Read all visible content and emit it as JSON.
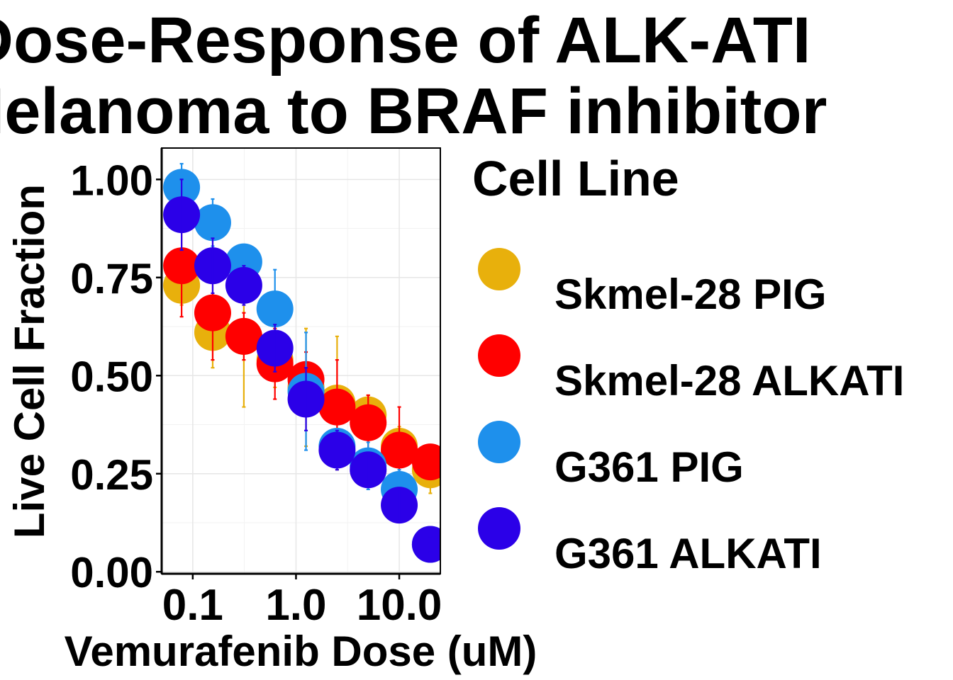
{
  "chart_data": {
    "type": "scatter",
    "title_lines": [
      "Dose-Response of ALK-ATI",
      "Melanoma to BRAF inhibitor"
    ],
    "xlabel": "Vemurafenib Dose (uM)",
    "ylabel": "Live Cell Fraction",
    "x_scale": "log10",
    "xlim": [
      0.05,
      25
    ],
    "ylim": [
      -0.005,
      1.08
    ],
    "x_ticks": [
      0.1,
      1.0,
      10.0
    ],
    "x_tick_labels": [
      "0.1",
      "1.0",
      "10.0"
    ],
    "y_ticks": [
      0,
      0.25,
      0.5,
      0.75,
      1.0
    ],
    "y_tick_labels": [
      "0.00",
      "0.25",
      "0.50",
      "0.75",
      "1.00"
    ],
    "grid": true,
    "legend": {
      "title": "Cell Line",
      "position": "right"
    },
    "x": [
      0.078,
      0.156,
      0.3125,
      0.625,
      1.25,
      2.5,
      5,
      10,
      20
    ],
    "series": [
      {
        "name": "Skmel-28 PIG",
        "color": "#E8B00C",
        "y": [
          0.73,
          0.61,
          0.6,
          0.54,
          0.47,
          0.43,
          0.4,
          0.32,
          0.26
        ],
        "err": [
          0.05,
          0.09,
          0.18,
          0.07,
          0.15,
          0.17,
          0.05,
          0.05,
          0.06
        ]
      },
      {
        "name": "Skmel-28 ALKATI",
        "color": "#FF0000",
        "y": [
          0.78,
          0.66,
          0.6,
          0.53,
          0.49,
          0.42,
          0.38,
          0.31,
          0.28
        ],
        "err": [
          0.13,
          0.12,
          0.06,
          0.09,
          0.07,
          0.12,
          0.07,
          0.11,
          0.04
        ]
      },
      {
        "name": "G361 PIG",
        "color": "#1E90EC",
        "y": [
          0.98,
          0.89,
          0.79,
          0.67,
          0.46,
          0.32,
          0.27,
          0.21,
          0.07
        ],
        "err": [
          0.06,
          0.06,
          0.03,
          0.1,
          0.15,
          0.03,
          0.06,
          0.05,
          0.03
        ]
      },
      {
        "name": "G361 ALKATI",
        "color": "#2B00E8",
        "y": [
          0.91,
          0.78,
          0.73,
          0.57,
          0.44,
          0.31,
          0.26,
          0.17,
          0.07
        ],
        "err": [
          0.09,
          0.07,
          0.05,
          0.06,
          0.08,
          0.05,
          0.04,
          0.04,
          0.02
        ]
      }
    ]
  }
}
